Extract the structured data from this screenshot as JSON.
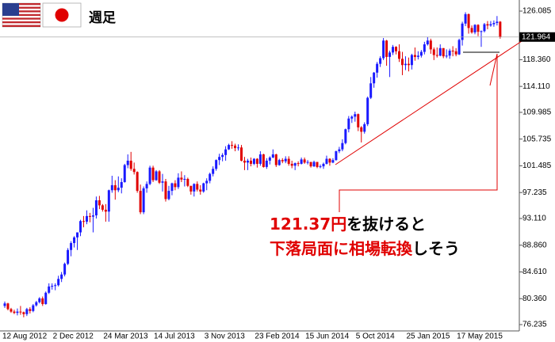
{
  "chart_data": {
    "type": "candlestick",
    "title": "週足",
    "up_color": "#1a1aff",
    "down_color": "#e00000",
    "ylim": [
      75.23,
      127.85
    ],
    "yticks": [
      126.085,
      {
        "value": 118.36,
        "label": "118.360"
      },
      {
        "value": 114.11,
        "label": "114.110"
      },
      109.985,
      105.735,
      101.485,
      97.235,
      {
        "value": 93.11,
        "label": "93.110"
      },
      {
        "value": 88.86,
        "label": "88.860"
      },
      {
        "value": 84.61,
        "label": "84.610"
      },
      {
        "value": 80.36,
        "label": "80.360"
      },
      76.235
    ],
    "categories": [
      "12 Aug 2012",
      null,
      null,
      null,
      null,
      null,
      null,
      null,
      null,
      null,
      null,
      null,
      null,
      null,
      null,
      null,
      "2 Dec 2012",
      null,
      null,
      null,
      null,
      null,
      null,
      null,
      null,
      null,
      null,
      null,
      null,
      null,
      null,
      null,
      "24 Mar 2013",
      null,
      null,
      null,
      null,
      null,
      null,
      null,
      null,
      null,
      null,
      null,
      null,
      null,
      null,
      null,
      "14 Jul 2013",
      null,
      null,
      null,
      null,
      null,
      null,
      null,
      null,
      null,
      null,
      null,
      null,
      null,
      null,
      null,
      "3 Nov 2013",
      null,
      null,
      null,
      null,
      null,
      null,
      null,
      null,
      null,
      null,
      null,
      null,
      null,
      null,
      null,
      "23 Feb 2014",
      null,
      null,
      null,
      null,
      null,
      null,
      null,
      null,
      null,
      null,
      null,
      null,
      null,
      null,
      null,
      "15 Jun 2014",
      null,
      null,
      null,
      null,
      null,
      null,
      null,
      null,
      null,
      null,
      null,
      null,
      null,
      null,
      null,
      "5 Oct 2014",
      null,
      null,
      null,
      null,
      null,
      null,
      null,
      null,
      null,
      null,
      null,
      null,
      null,
      null,
      null,
      "25 Jan 2015",
      null,
      null,
      null,
      null,
      null,
      null,
      null,
      null,
      null,
      null,
      null,
      null,
      null,
      null,
      null,
      "17 May 2015",
      null,
      null,
      null,
      null,
      null,
      null,
      null,
      null,
      null,
      null,
      null,
      null,
      null
    ],
    "open": [
      79.2,
      79.6,
      78.7,
      78.3,
      78.1,
      78.3,
      78.2,
      77.9,
      78.7,
      78.4,
      79.3,
      79.8,
      80.4,
      79.5,
      81.3,
      82.3,
      82.4,
      82.5,
      83.5,
      84.2,
      85.9,
      88.1,
      89.2,
      90.1,
      90.9,
      92.7,
      92.6,
      93.5,
      93.4,
      93.6,
      96.0,
      95.2,
      94.5,
      94.2,
      97.6,
      98.4,
      97.6,
      98.0,
      98.9,
      101.6,
      102.3,
      101.0,
      100.5,
      97.5,
      94.1,
      97.9,
      98.6,
      101.2,
      99.2,
      100.6,
      98.8,
      99.0,
      96.2,
      97.5,
      98.7,
      98.1,
      99.6,
      99.3,
      99.4,
      98.3,
      97.4,
      98.6,
      97.7,
      97.4,
      98.7,
      99.1,
      100.2,
      101.0,
      102.4,
      102.9,
      103.2,
      104.1,
      104.8,
      104.7,
      104.3,
      104.4,
      102.3,
      102.0,
      102.3,
      101.8,
      102.6,
      101.8,
      103.3,
      101.3,
      102.3,
      102.8,
      103.3,
      101.6,
      102.4,
      102.2,
      102.6,
      101.8,
      101.5,
      101.9,
      101.8,
      102.5,
      102.0,
      102.1,
      101.4,
      102.1,
      101.3,
      101.4,
      101.8,
      102.6,
      102.0,
      102.4,
      103.8,
      104.1,
      105.1,
      107.3,
      109.0,
      109.3,
      109.7,
      107.6,
      106.9,
      108.1,
      112.3,
      114.6,
      116.3,
      117.7,
      118.6,
      121.4,
      118.8,
      119.5,
      120.4,
      119.7,
      118.5,
      117.5,
      117.7,
      117.5,
      119.1,
      118.8,
      119.0,
      119.6,
      120.8,
      121.4,
      120.0,
      119.1,
      119.0,
      120.2,
      118.9,
      119.0,
      119.8,
      119.7,
      119.2,
      121.5,
      124.1,
      125.6,
      123.4,
      122.7,
      123.9,
      122.8,
      122.9,
      124.0,
      123.8,
      124.0,
      124.2,
      124.4
    ],
    "high": [
      79.9,
      79.7,
      78.9,
      78.6,
      78.8,
      79.2,
      78.3,
      78.9,
      79.0,
      79.5,
      80.0,
      80.6,
      80.7,
      81.5,
      82.8,
      82.8,
      82.8,
      84.0,
      84.6,
      86.1,
      88.4,
      89.5,
      90.3,
      90.9,
      92.9,
      93.5,
      94.4,
      94.0,
      94.8,
      96.6,
      96.7,
      95.4,
      95.4,
      97.7,
      99.9,
      99.2,
      99.8,
      99.5,
      101.8,
      103.3,
      103.7,
      102.0,
      100.6,
      98.5,
      98.2,
      99.0,
      101.5,
      101.5,
      100.8,
      100.8,
      100.2,
      99.4,
      98.3,
      98.8,
      99.2,
      100.3,
      100.6,
      100.0,
      99.6,
      98.3,
      98.7,
      99.0,
      98.4,
      98.8,
      99.5,
      100.4,
      101.4,
      102.5,
      103.4,
      103.5,
      104.6,
      105.0,
      105.4,
      105.0,
      104.9,
      104.8,
      102.9,
      102.6,
      102.8,
      102.7,
      102.7,
      103.8,
      103.4,
      102.7,
      103.0,
      104.1,
      103.4,
      102.6,
      102.7,
      103.0,
      103.0,
      102.3,
      102.0,
      102.2,
      102.8,
      102.8,
      102.4,
      102.1,
      102.3,
      102.1,
      101.7,
      102.0,
      103.1,
      102.7,
      102.7,
      103.9,
      104.5,
      105.7,
      107.4,
      109.4,
      109.5,
      110.1,
      109.8,
      107.8,
      108.4,
      112.5,
      115.6,
      116.4,
      118.0,
      118.9,
      121.8,
      121.5,
      119.8,
      120.7,
      120.5,
      120.8,
      119.6,
      118.9,
      118.7,
      119.3,
      120.3,
      119.7,
      119.9,
      121.2,
      122.0,
      121.7,
      120.3,
      120.3,
      120.8,
      120.2,
      120.0,
      120.1,
      120.5,
      120.2,
      121.7,
      124.4,
      125.9,
      125.7,
      123.8,
      124.0,
      124.0,
      123.0,
      124.2,
      124.5,
      124.5,
      124.6,
      125.3,
      124.5
    ],
    "low": [
      78.9,
      78.5,
      78.1,
      77.9,
      77.7,
      77.8,
      77.4,
      77.6,
      78.0,
      78.2,
      79.1,
      79.6,
      79.2,
      79.4,
      81.1,
      81.8,
      81.7,
      82.3,
      83.0,
      83.9,
      85.7,
      87.1,
      88.5,
      88.1,
      90.3,
      91.7,
      92.2,
      92.5,
      90.9,
      93.1,
      94.6,
      94.2,
      92.6,
      92.6,
      97.2,
      96.1,
      97.3,
      97.1,
      98.8,
      101.1,
      100.7,
      100.1,
      97.2,
      93.8,
      93.8,
      97.2,
      98.4,
      98.9,
      99.1,
      98.6,
      97.4,
      95.8,
      96.0,
      96.8,
      97.6,
      97.8,
      98.9,
      98.2,
      98.1,
      96.9,
      96.6,
      97.4,
      96.9,
      97.2,
      97.6,
      98.7,
      99.8,
      100.7,
      101.6,
      102.2,
      102.3,
      104.0,
      104.2,
      103.8,
      103.9,
      102.2,
      100.8,
      100.8,
      101.4,
      101.6,
      101.2,
      101.5,
      101.2,
      101.0,
      101.7,
      102.7,
      101.3,
      101.5,
      101.9,
      101.9,
      101.5,
      101.1,
      100.8,
      101.4,
      101.7,
      101.8,
      101.7,
      101.2,
      101.3,
      101.1,
      101.1,
      101.0,
      101.7,
      101.5,
      101.9,
      102.3,
      103.5,
      103.8,
      104.9,
      106.8,
      108.3,
      108.5,
      107.0,
      105.2,
      106.6,
      107.8,
      112.1,
      113.9,
      115.5,
      117.2,
      118.3,
      117.4,
      115.6,
      119.1,
      119.2,
      118.0,
      115.9,
      116.7,
      116.5,
      116.8,
      118.2,
      118.4,
      118.7,
      119.2,
      120.6,
      119.3,
      118.3,
      118.7,
      118.9,
      118.6,
      118.6,
      118.5,
      118.9,
      118.9,
      119.1,
      120.6,
      123.7,
      122.5,
      122.5,
      122.4,
      122.1,
      120.4,
      122.7,
      123.2,
      123.6,
      123.6,
      123.8,
      121.7
    ],
    "close": [
      79.6,
      78.7,
      78.3,
      78.1,
      78.3,
      78.2,
      77.9,
      78.7,
      78.4,
      79.3,
      79.8,
      80.4,
      79.5,
      81.3,
      82.3,
      82.4,
      82.5,
      83.5,
      84.2,
      85.9,
      88.1,
      89.2,
      90.1,
      90.9,
      92.7,
      92.6,
      93.5,
      93.4,
      93.6,
      96.0,
      95.2,
      94.5,
      94.2,
      97.6,
      98.4,
      97.6,
      98.0,
      98.9,
      101.6,
      102.3,
      101.0,
      100.5,
      97.5,
      94.1,
      97.9,
      98.6,
      101.2,
      99.2,
      100.6,
      98.8,
      99.0,
      96.2,
      97.5,
      98.7,
      98.1,
      99.6,
      99.3,
      99.4,
      98.3,
      97.4,
      98.6,
      97.7,
      97.4,
      98.7,
      99.1,
      100.2,
      101.0,
      102.4,
      102.9,
      103.2,
      104.1,
      104.8,
      104.7,
      104.3,
      104.4,
      102.3,
      102.0,
      102.3,
      101.8,
      102.6,
      101.8,
      103.3,
      101.3,
      102.3,
      102.8,
      103.3,
      101.6,
      102.4,
      102.2,
      102.6,
      101.8,
      101.5,
      101.9,
      101.8,
      102.5,
      102.0,
      102.1,
      101.4,
      102.1,
      101.3,
      101.4,
      101.8,
      102.6,
      102.0,
      102.4,
      103.8,
      104.1,
      105.1,
      107.3,
      109.0,
      109.3,
      109.7,
      107.6,
      106.9,
      108.1,
      112.3,
      114.6,
      116.3,
      117.7,
      118.6,
      121.4,
      118.8,
      119.5,
      120.4,
      119.7,
      118.5,
      117.5,
      117.7,
      117.5,
      119.1,
      118.8,
      119.0,
      119.6,
      120.8,
      121.4,
      120.0,
      119.1,
      119.0,
      120.2,
      118.9,
      119.0,
      119.8,
      119.7,
      119.2,
      121.5,
      124.1,
      125.6,
      123.4,
      122.7,
      123.9,
      122.8,
      122.9,
      124.0,
      123.8,
      124.0,
      124.2,
      124.4,
      121.964
    ],
    "annotation": [
      [
        {
          "text": "121.37",
          "color": "#e00000"
        },
        {
          "text": "円",
          "color": "#e00000"
        },
        {
          "text": "を抜けると",
          "color": "#000000"
        }
      ],
      [
        {
          "text": "下落局面に相場転換",
          "color": "#e00000"
        },
        {
          "text": "しそう",
          "color": "#000000"
        }
      ]
    ]
  }
}
